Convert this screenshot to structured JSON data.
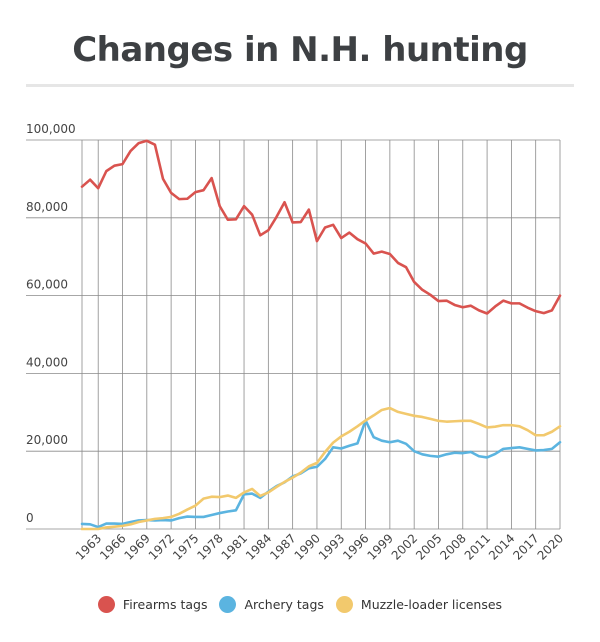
{
  "page": {
    "title": "Changes in N.H. hunting"
  },
  "colors": {
    "firearms": "#d9534f",
    "archery": "#5bb4e0",
    "muzzle": "#f2c96d",
    "grid": "#8a8a8a",
    "axis_text": "#444444"
  },
  "chart_data": {
    "type": "line",
    "title": "Changes in N.H. hunting",
    "xlabel": "",
    "ylabel": "",
    "xlim": [
      1961,
      2020
    ],
    "ylim": [
      0,
      100000
    ],
    "y_ticks": [
      0,
      20000,
      40000,
      60000,
      80000,
      100000
    ],
    "y_tick_labels": [
      "0",
      "20,000",
      "40,000",
      "60,000",
      "80,000",
      "100,000"
    ],
    "x_ticks": [
      1963,
      1966,
      1969,
      1972,
      1975,
      1978,
      1981,
      1984,
      1987,
      1990,
      1993,
      1996,
      1999,
      2002,
      2005,
      2008,
      2011,
      2014,
      2017,
      2020
    ],
    "x_tick_labels": [
      "1963",
      "1966",
      "1969",
      "1972",
      "1975",
      "1978",
      "1981",
      "1984",
      "1987",
      "1990",
      "1993",
      "1996",
      "1999",
      "2002",
      "2005",
      "2008",
      "2011",
      "2014",
      "2017",
      "2020"
    ],
    "grid": true,
    "legend_position": "bottom",
    "x": [
      1961,
      1962,
      1963,
      1964,
      1965,
      1966,
      1967,
      1968,
      1969,
      1970,
      1971,
      1972,
      1973,
      1974,
      1975,
      1976,
      1977,
      1978,
      1979,
      1980,
      1981,
      1982,
      1983,
      1984,
      1985,
      1986,
      1987,
      1988,
      1989,
      1990,
      1991,
      1992,
      1993,
      1994,
      1995,
      1996,
      1997,
      1998,
      1999,
      2000,
      2001,
      2002,
      2003,
      2004,
      2005,
      2006,
      2007,
      2008,
      2009,
      2010,
      2011,
      2012,
      2013,
      2014,
      2015,
      2016,
      2017,
      2018,
      2019,
      2020
    ],
    "series": [
      {
        "name": "Firearms tags",
        "color": "#d9534f",
        "values": [
          88000,
          89800,
          87600,
          92000,
          93400,
          93800,
          97200,
          99200,
          99800,
          98800,
          90000,
          86400,
          84800,
          84900,
          86600,
          87100,
          90200,
          83000,
          79500,
          79600,
          83000,
          80800,
          75500,
          76800,
          80200,
          84000,
          78800,
          78900,
          82100,
          74000,
          77500,
          78200,
          74800,
          76200,
          74500,
          73400,
          70800,
          71300,
          70700,
          68400,
          67300,
          63500,
          61500,
          60200,
          58600,
          58700,
          57600,
          57000,
          57400,
          56200,
          55400,
          57200,
          58700,
          58000,
          58000,
          56900,
          56000,
          55500,
          56200,
          60000
        ]
      },
      {
        "name": "Archery tags",
        "color": "#5bb4e0",
        "values": [
          1300,
          1200,
          500,
          1400,
          1400,
          1300,
          1800,
          2200,
          2300,
          2200,
          2300,
          2200,
          2800,
          3200,
          3100,
          3100,
          3600,
          4100,
          4500,
          4800,
          8900,
          9100,
          8000,
          9600,
          11000,
          12000,
          13500,
          14300,
          15600,
          16000,
          18000,
          21000,
          20700,
          21400,
          22000,
          27900,
          23600,
          22700,
          22300,
          22700,
          21900,
          20000,
          19200,
          18800,
          18600,
          19200,
          19600,
          19500,
          19800,
          18700,
          18400,
          19300,
          20600,
          20800,
          21000,
          20600,
          20200,
          20300,
          20600,
          22300
        ]
      },
      {
        "name": "Muzzle-loader licenses",
        "color": "#f2c96d",
        "values": [
          0,
          0,
          0,
          400,
          600,
          800,
          1200,
          1800,
          2200,
          2600,
          2800,
          3100,
          3900,
          5000,
          6000,
          7800,
          8300,
          8200,
          8600,
          8000,
          9400,
          10300,
          8500,
          9400,
          10800,
          12100,
          13200,
          14500,
          16100,
          17000,
          19800,
          22200,
          23800,
          25000,
          26400,
          27900,
          29200,
          30600,
          31100,
          30100,
          29600,
          29100,
          28800,
          28300,
          27800,
          27600,
          27700,
          27800,
          27800,
          27000,
          26100,
          26300,
          26700,
          26700,
          26400,
          25400,
          24100,
          24100,
          25000,
          26400
        ]
      }
    ]
  }
}
